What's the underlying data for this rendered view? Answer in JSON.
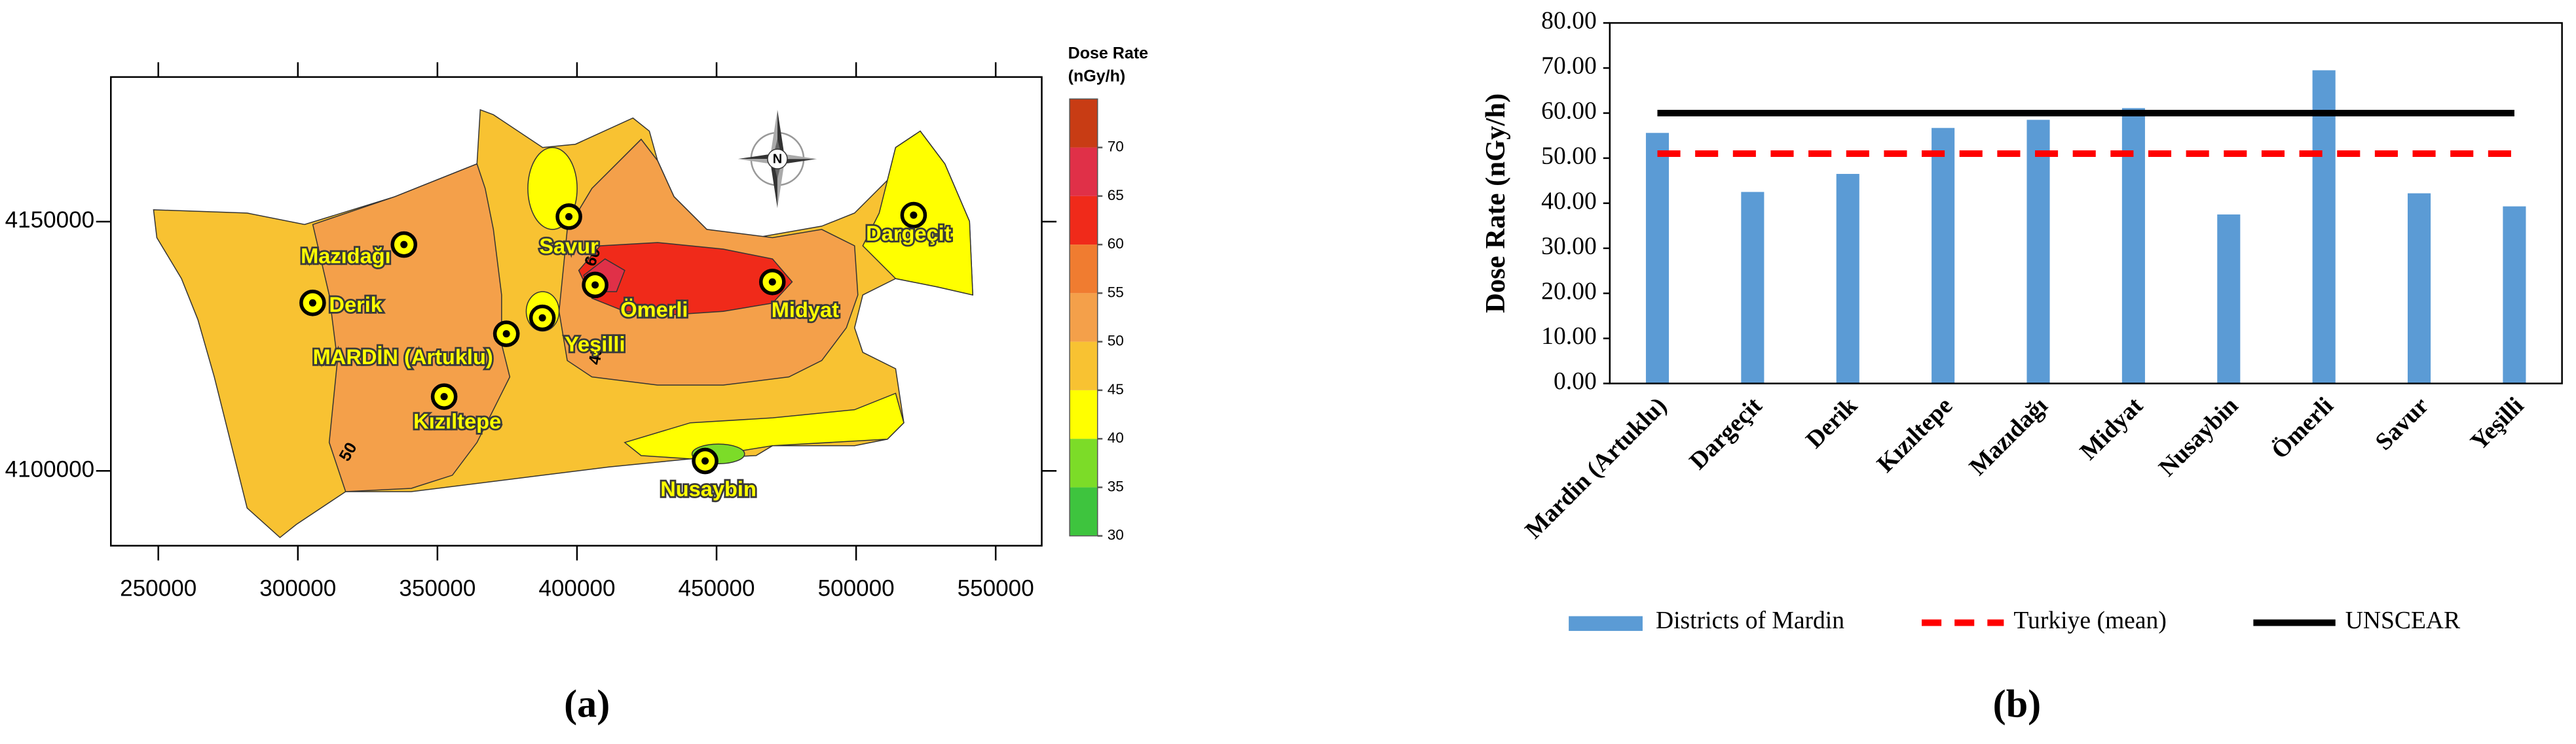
{
  "chart_data": [
    {
      "type": "contour-map",
      "xlim": [
        233000,
        566500
      ],
      "ylim": [
        4085000,
        4179000
      ],
      "xticks": [
        250000,
        300000,
        350000,
        400000,
        450000,
        500000,
        550000
      ],
      "yticks": [
        4100000,
        4150000
      ],
      "places": [
        {
          "name": "Mazıdağı",
          "x": 338000,
          "y": 4145400
        },
        {
          "name": "Derik",
          "x": 305300,
          "y": 4133700
        },
        {
          "name": "MARDİN (Artuklu)",
          "x": 374700,
          "y": 4127500
        },
        {
          "name": "Kızıltepe",
          "x": 352400,
          "y": 4114900
        },
        {
          "name": "Savur",
          "x": 397100,
          "y": 4151000
        },
        {
          "name": "Ömerli",
          "x": 406500,
          "y": 4137300
        },
        {
          "name": "Yeşilli",
          "x": 387600,
          "y": 4130700
        },
        {
          "name": "Midyat",
          "x": 470000,
          "y": 4137900
        },
        {
          "name": "Dargeçit",
          "x": 520600,
          "y": 4151300
        },
        {
          "name": "Nusaybin",
          "x": 445900,
          "y": 4102000
        }
      ],
      "contour_labels": [
        "50",
        "45",
        "60"
      ],
      "colorbar": {
        "title": [
          "Dose Rate",
          "(nGy/h)"
        ],
        "clim": [
          30,
          75
        ],
        "levels": [
          30,
          35,
          40,
          45,
          50,
          55,
          60,
          65,
          70,
          75
        ],
        "colors": [
          "#3ec43e",
          "#7cdc28",
          "#ffff00",
          "#f8c232",
          "#f4a04a",
          "#f07c30",
          "#f02a1a",
          "#e03048",
          "#c83c14"
        ],
        "ticks": [
          30,
          35,
          40,
          45,
          50,
          55,
          60,
          65,
          70
        ]
      },
      "caption": "(a)"
    },
    {
      "type": "bar",
      "categories": [
        "Mardin (Artuklu)",
        "Dargeçit",
        "Derik",
        "Kızıltepe",
        "Mazıdağı",
        "Midyat",
        "Nusaybin",
        "Ömerli",
        "Savur",
        "Yeşilli"
      ],
      "ylabel": "Dose Rate (nGy/h)",
      "ylim": [
        0,
        80
      ],
      "yticks": [
        {
          "value": 0,
          "label": "0.00"
        },
        {
          "value": 10,
          "label": "10.00"
        },
        {
          "value": 20,
          "label": "20.00"
        },
        {
          "value": 30,
          "label": "30.00"
        },
        {
          "value": 40,
          "label": "40.00"
        },
        {
          "value": 50,
          "label": "50.00"
        },
        {
          "value": 60,
          "label": "60.00"
        },
        {
          "value": 70,
          "label": "70.00"
        },
        {
          "value": 80,
          "label": "80.00"
        }
      ],
      "series": [
        {
          "name": "Districts of Mardin",
          "color": "#5b9bd5",
          "type": "bar",
          "values": [
            55.6,
            42.5,
            46.5,
            56.7,
            58.5,
            61.1,
            37.5,
            69.5,
            42.2,
            39.3
          ]
        },
        {
          "name": "Turkiye (mean)",
          "color": "#ff0000",
          "type": "line",
          "dashed": true,
          "values": [
            51,
            51,
            51,
            51,
            51,
            51,
            51,
            51,
            51,
            51
          ]
        },
        {
          "name": "UNSCEAR",
          "color": "#000000",
          "type": "line",
          "dashed": false,
          "values": [
            60,
            60,
            60,
            60,
            60,
            60,
            60,
            60,
            60,
            60
          ]
        }
      ],
      "caption": "(b)"
    }
  ]
}
